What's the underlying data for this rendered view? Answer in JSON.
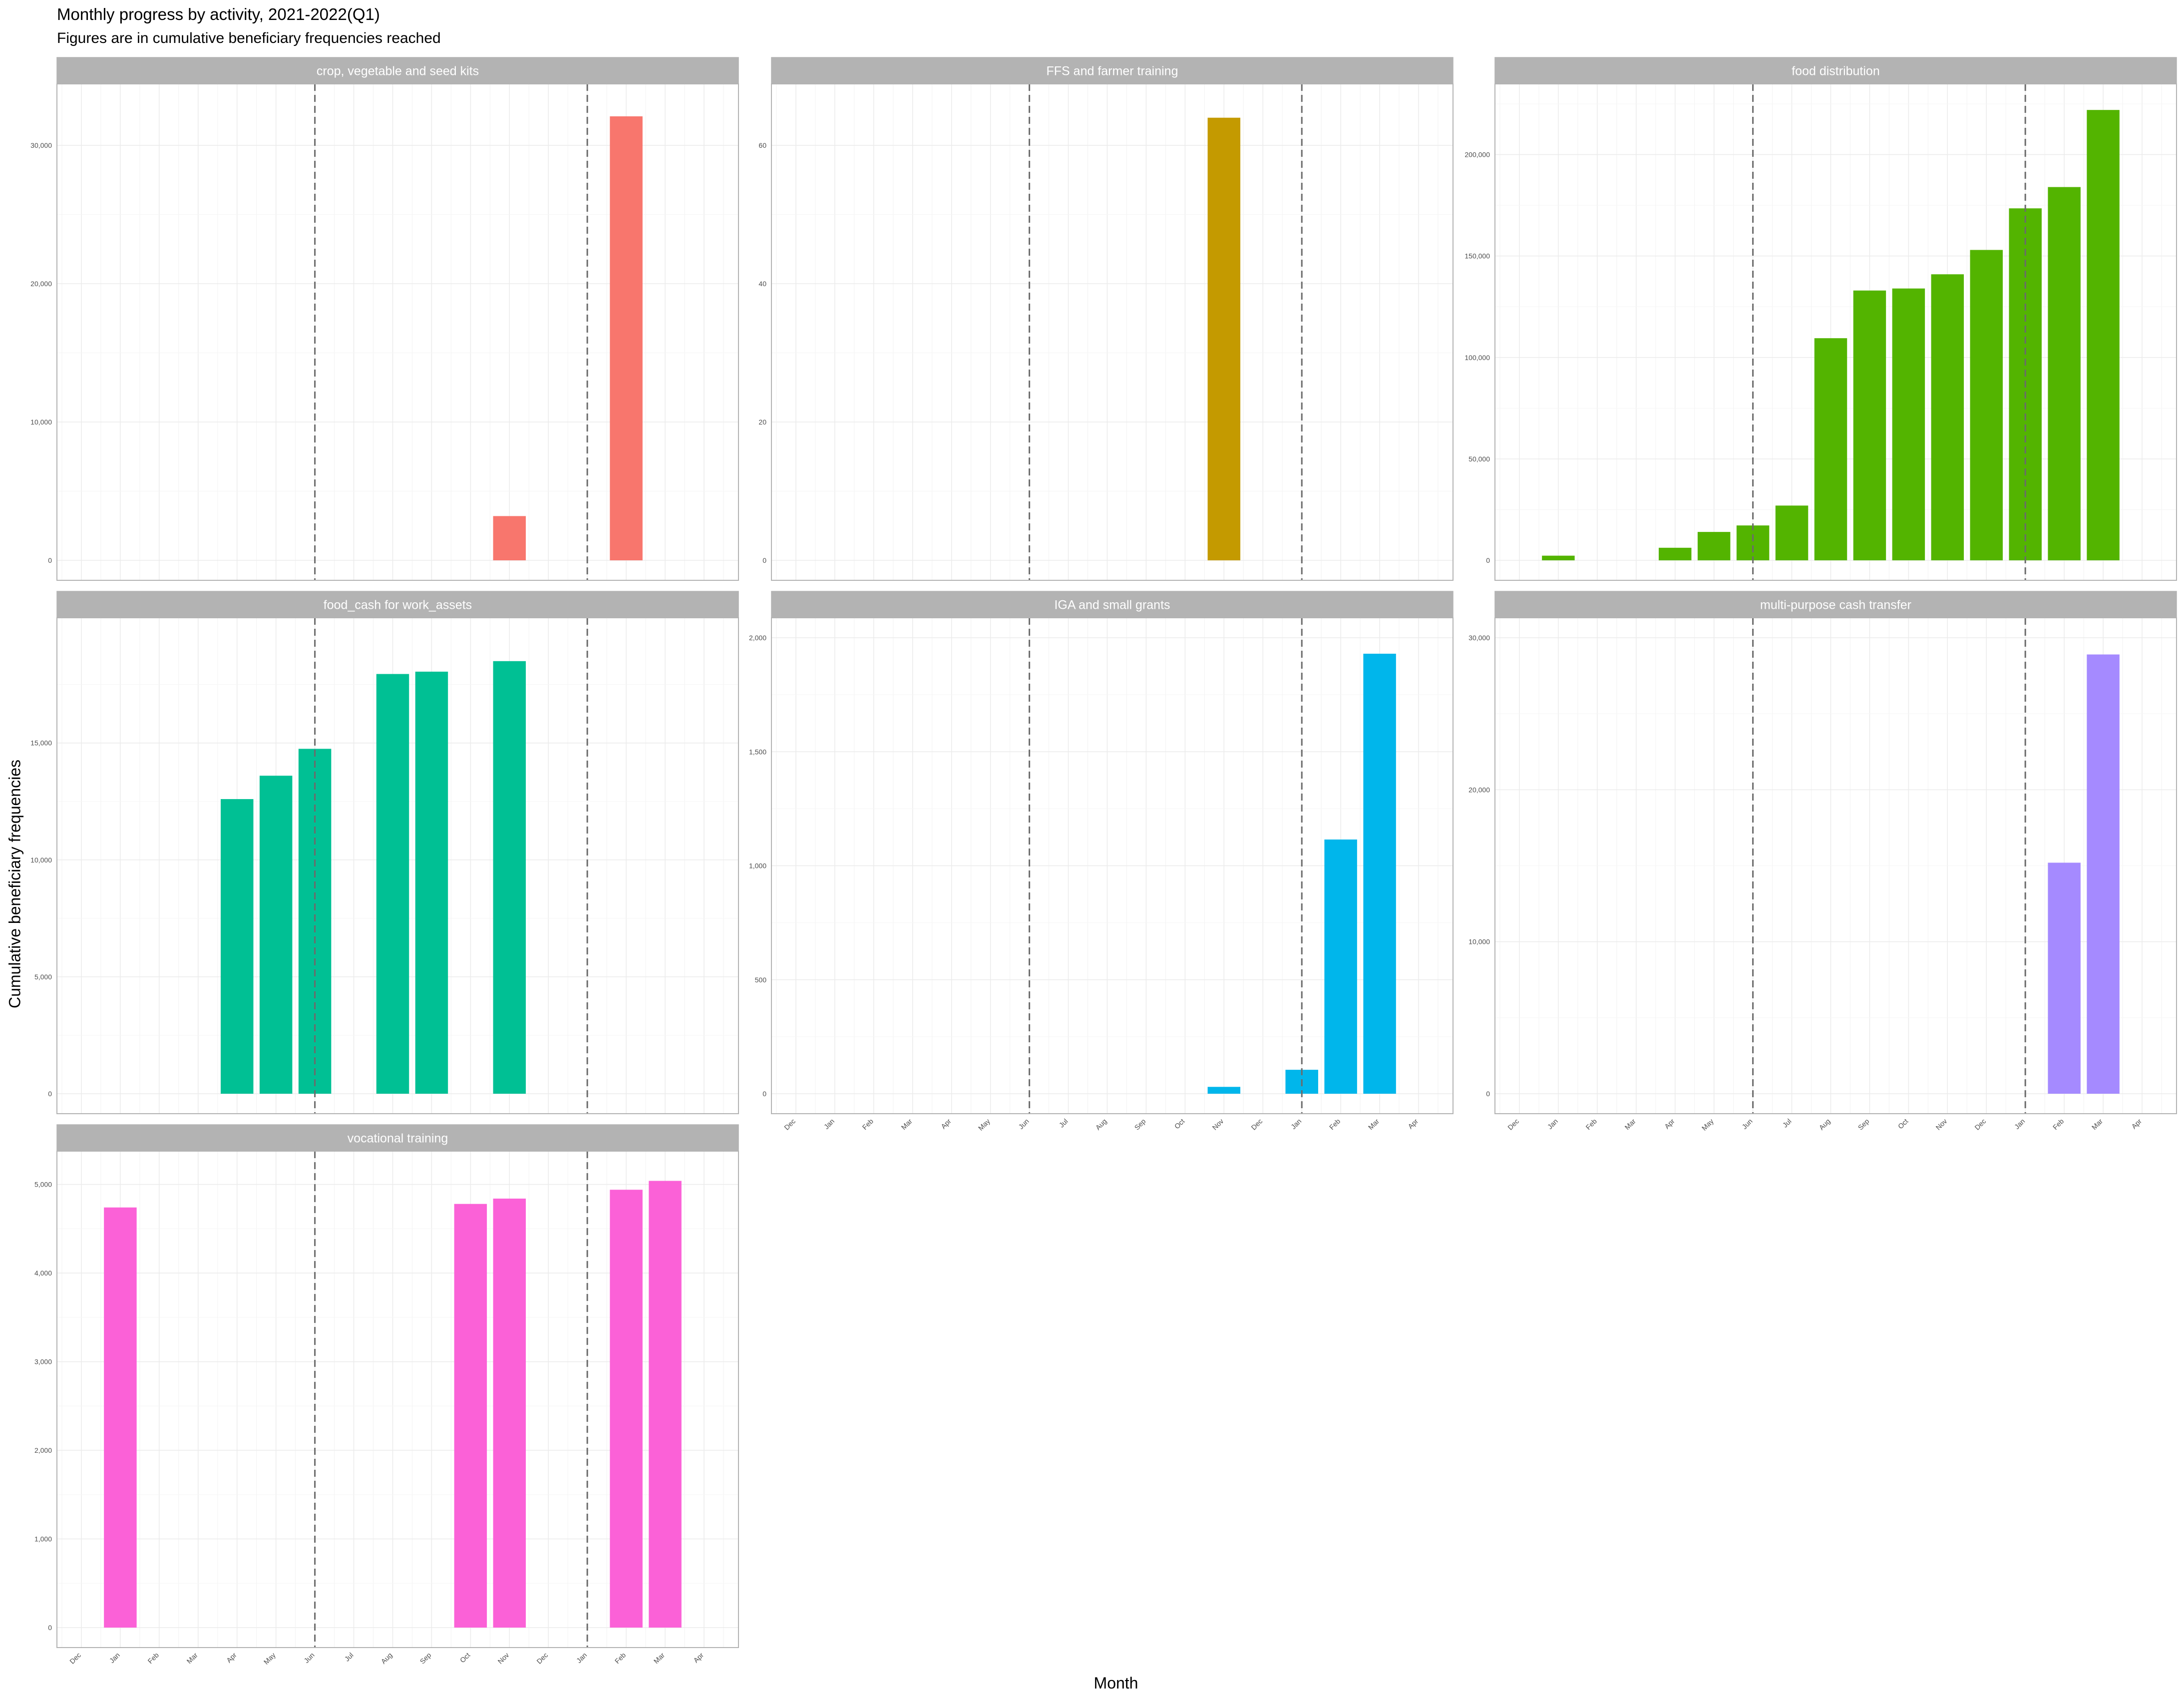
{
  "title": "Monthly progress by activity, 2021-2022(Q1)",
  "subtitle": "Figures are in cumulative beneficiary frequencies reached",
  "chart_data": {
    "type": "bar",
    "xlabel": "Month",
    "ylabel": "Cumulative beneficiary frequencies",
    "x_tick_labels": [
      "Dec",
      "Jan",
      "Feb",
      "Mar",
      "Apr",
      "May",
      "Jun",
      "Jul",
      "Aug",
      "Sep",
      "Oct",
      "Nov",
      "Dec",
      "Jan",
      "Feb",
      "Mar",
      "Apr"
    ],
    "reference_lines": [
      "Jun",
      "Jan"
    ],
    "grid": true,
    "legend": "none",
    "panels": [
      {
        "name": "crop, vegetable and seed kits",
        "color": "#F8766D",
        "ylim": [
          0,
          33000
        ],
        "yticks": [
          0,
          10000,
          20000,
          30000
        ],
        "ytick_labels": [
          "0",
          "10,000",
          "20,000",
          "30,000"
        ],
        "bars": [
          {
            "month": "Nov 2021",
            "value": 3200
          },
          {
            "month": "Feb 2022",
            "value": 32100
          }
        ]
      },
      {
        "name": "FFS and farmer training",
        "color": "#C49A00",
        "ylim": [
          0,
          66
        ],
        "yticks": [
          0,
          20,
          40,
          60
        ],
        "ytick_labels": [
          "0",
          "20",
          "40",
          "60"
        ],
        "bars": [
          {
            "month": "Nov 2021",
            "value": 64
          }
        ]
      },
      {
        "name": "food distribution",
        "color": "#53B400",
        "ylim": [
          0,
          225000
        ],
        "yticks": [
          0,
          50000,
          100000,
          150000,
          200000
        ],
        "ytick_labels": [
          "0",
          "50,000",
          "100,000",
          "150,000",
          "200,000"
        ],
        "bars": [
          {
            "month": "Jan 2021",
            "value": 2300
          },
          {
            "month": "Apr 2021",
            "value": 6200
          },
          {
            "month": "May 2021",
            "value": 14000
          },
          {
            "month": "Jun 2021",
            "value": 17200
          },
          {
            "month": "Jul 2021",
            "value": 27000
          },
          {
            "month": "Aug 2021",
            "value": 109500
          },
          {
            "month": "Sep 2021",
            "value": 133000
          },
          {
            "month": "Oct 2021",
            "value": 134000
          },
          {
            "month": "Nov 2021",
            "value": 141000
          },
          {
            "month": "Dec 2021",
            "value": 153000
          },
          {
            "month": "Jan 2022",
            "value": 173500
          },
          {
            "month": "Feb 2022",
            "value": 184000
          },
          {
            "month": "Mar 2022",
            "value": 222000
          }
        ]
      },
      {
        "name": "food_cash for work_assets",
        "color": "#00C094",
        "ylim": [
          0,
          19500
        ],
        "yticks": [
          0,
          5000,
          10000,
          15000
        ],
        "ytick_labels": [
          "0",
          "5,000",
          "10,000",
          "15,000"
        ],
        "bars": [
          {
            "month": "Apr 2021",
            "value": 12600
          },
          {
            "month": "May 2021",
            "value": 13600
          },
          {
            "month": "Jun 2021",
            "value": 14750
          },
          {
            "month": "Aug 2021",
            "value": 17950
          },
          {
            "month": "Sep 2021",
            "value": 18050
          },
          {
            "month": "Nov 2021",
            "value": 18500
          }
        ]
      },
      {
        "name": "IGA and small grants",
        "color": "#00B6EB",
        "ylim": [
          0,
          2000
        ],
        "yticks": [
          0,
          500,
          1000,
          1500,
          2000
        ],
        "ytick_labels": [
          "0",
          "500",
          "1,000",
          "1,500",
          "2,000"
        ],
        "bars": [
          {
            "month": "Nov 2021",
            "value": 30
          },
          {
            "month": "Jan 2022",
            "value": 105
          },
          {
            "month": "Feb 2022",
            "value": 1115
          },
          {
            "month": "Mar 2022",
            "value": 1930
          }
        ]
      },
      {
        "name": "multi-purpose cash transfer",
        "color": "#A58AFF",
        "ylim": [
          0,
          30000
        ],
        "yticks": [
          0,
          10000,
          20000,
          30000
        ],
        "ytick_labels": [
          "0",
          "10,000",
          "20,000",
          "30,000"
        ],
        "bars": [
          {
            "month": "Feb 2022",
            "value": 15200
          },
          {
            "month": "Mar 2022",
            "value": 28900
          }
        ]
      },
      {
        "name": "vocational training",
        "color": "#FB61D7",
        "ylim": [
          0,
          5150
        ],
        "yticks": [
          0,
          1000,
          2000,
          3000,
          4000,
          5000
        ],
        "ytick_labels": [
          "0",
          "1,000",
          "2,000",
          "3,000",
          "4,000",
          "5,000"
        ],
        "bars": [
          {
            "month": "Jan 2021",
            "value": 4740
          },
          {
            "month": "Oct 2021",
            "value": 4780
          },
          {
            "month": "Nov 2021",
            "value": 4840
          },
          {
            "month": "Feb 2022",
            "value": 4940
          },
          {
            "month": "Mar 2022",
            "value": 5040
          }
        ]
      }
    ]
  }
}
